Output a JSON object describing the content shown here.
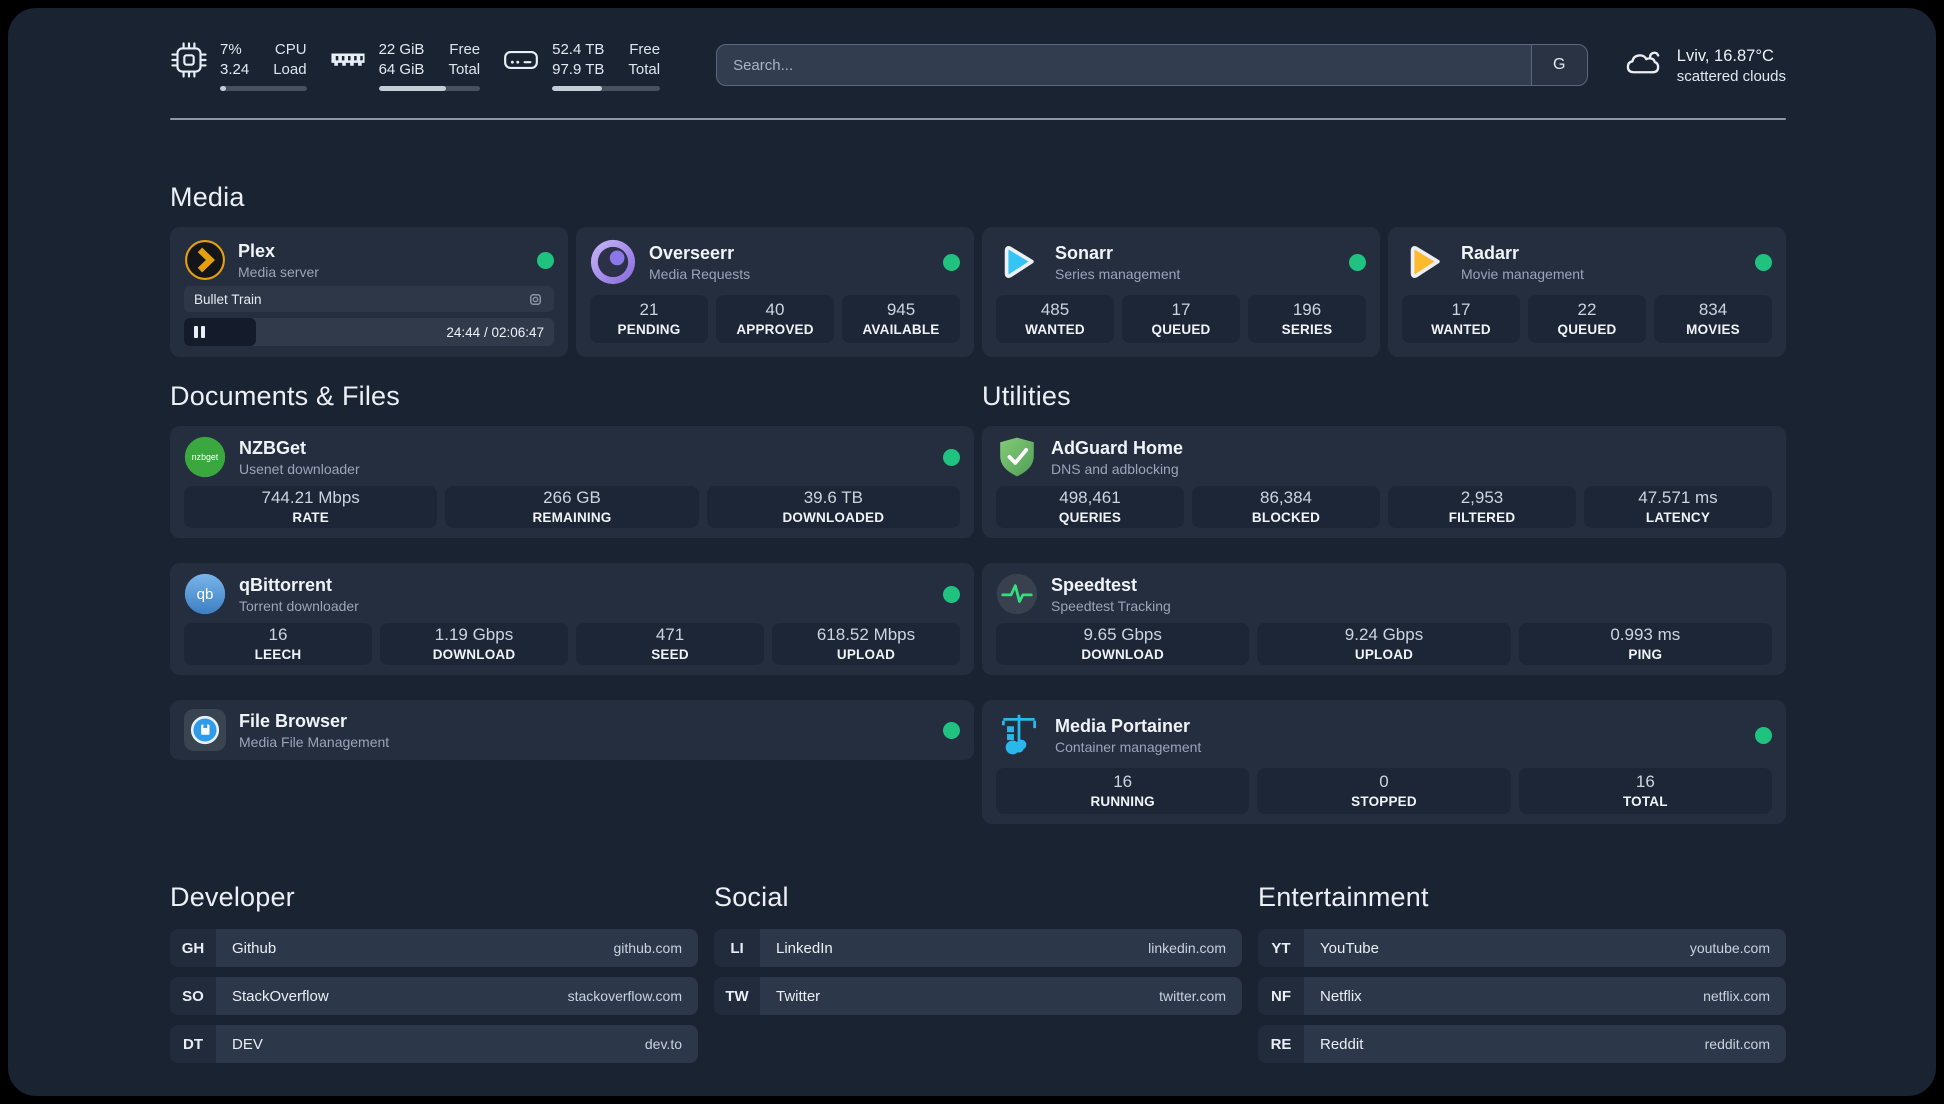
{
  "topbar": {
    "cpu": {
      "icon": "cpu-icon",
      "value_top": "7%",
      "value_bottom": "3.24",
      "label_top": "CPU",
      "label_bottom": "Load",
      "progress_pct": 7
    },
    "memory": {
      "icon": "ram-icon",
      "value_top": "22 GiB",
      "value_bottom": "64 GiB",
      "label_top": "Free",
      "label_bottom": "Total",
      "progress_pct": 66
    },
    "disk": {
      "icon": "disk-icon",
      "value_top": "52.4 TB",
      "value_bottom": "97.9 TB",
      "label_top": "Free",
      "label_bottom": "Total",
      "progress_pct": 46
    },
    "search": {
      "placeholder": "Search...",
      "engine_button_label": "G"
    },
    "weather": {
      "icon": "cloud-icon",
      "location_temp": "Lviv, 16.87°C",
      "condition": "scattered clouds"
    }
  },
  "sections": {
    "media": {
      "header": "Media",
      "plex": {
        "icon": "plex-logo",
        "title": "Plex",
        "subtitle": "Media server",
        "status": "online",
        "now_playing": "Bullet Train",
        "time": "24:44 / 02:06:47",
        "progress_pct": 19.5
      },
      "overseerr": {
        "icon": "overseerr-logo",
        "title": "Overseerr",
        "subtitle": "Media Requests",
        "status": "online",
        "stats": [
          {
            "value": "21",
            "label": "PENDING"
          },
          {
            "value": "40",
            "label": "APPROVED"
          },
          {
            "value": "945",
            "label": "AVAILABLE"
          }
        ]
      },
      "sonarr": {
        "icon": "sonarr-logo",
        "title": "Sonarr",
        "subtitle": "Series management",
        "status": "online",
        "stats": [
          {
            "value": "485",
            "label": "WANTED"
          },
          {
            "value": "17",
            "label": "QUEUED"
          },
          {
            "value": "196",
            "label": "SERIES"
          }
        ]
      },
      "radarr": {
        "icon": "radarr-logo",
        "title": "Radarr",
        "subtitle": "Movie management",
        "status": "online",
        "stats": [
          {
            "value": "17",
            "label": "WANTED"
          },
          {
            "value": "22",
            "label": "QUEUED"
          },
          {
            "value": "834",
            "label": "MOVIES"
          }
        ]
      }
    },
    "documents": {
      "header": "Documents & Files",
      "nzbget": {
        "icon": "nzbget-logo",
        "title": "NZBGet",
        "subtitle": "Usenet downloader",
        "status": "online",
        "stats": [
          {
            "value": "744.21 Mbps",
            "label": "RATE"
          },
          {
            "value": "266 GB",
            "label": "REMAINING"
          },
          {
            "value": "39.6 TB",
            "label": "DOWNLOADED"
          }
        ]
      },
      "qbittorrent": {
        "icon": "qbittorrent-logo",
        "title": "qBittorrent",
        "subtitle": "Torrent downloader",
        "status": "online",
        "stats": [
          {
            "value": "16",
            "label": "LEECH"
          },
          {
            "value": "1.19 Gbps",
            "label": "DOWNLOAD"
          },
          {
            "value": "471",
            "label": "SEED"
          },
          {
            "value": "618.52 Mbps",
            "label": "UPLOAD"
          }
        ]
      },
      "filebrowser": {
        "icon": "filebrowser-logo",
        "title": "File Browser",
        "subtitle": "Media File Management",
        "status": "online"
      }
    },
    "utilities": {
      "header": "Utilities",
      "adguard": {
        "icon": "adguard-logo",
        "title": "AdGuard Home",
        "subtitle": "DNS and adblocking",
        "stats": [
          {
            "value": "498,461",
            "label": "QUERIES"
          },
          {
            "value": "86,384",
            "label": "BLOCKED"
          },
          {
            "value": "2,953",
            "label": "FILTERED"
          },
          {
            "value": "47.571 ms",
            "label": "LATENCY"
          }
        ]
      },
      "speedtest": {
        "icon": "speedtest-logo",
        "title": "Speedtest",
        "subtitle": "Speedtest Tracking",
        "stats": [
          {
            "value": "9.65 Gbps",
            "label": "DOWNLOAD"
          },
          {
            "value": "9.24 Gbps",
            "label": "UPLOAD"
          },
          {
            "value": "0.993 ms",
            "label": "PING"
          }
        ]
      },
      "portainer": {
        "icon": "portainer-logo",
        "title": "Media Portainer",
        "subtitle": "Container management",
        "status": "online",
        "stats": [
          {
            "value": "16",
            "label": "RUNNING"
          },
          {
            "value": "0",
            "label": "STOPPED"
          },
          {
            "value": "16",
            "label": "TOTAL"
          }
        ]
      }
    },
    "bookmarks": [
      {
        "header": "Developer",
        "items": [
          {
            "abbr": "GH",
            "name": "Github",
            "url": "github.com"
          },
          {
            "abbr": "SO",
            "name": "StackOverflow",
            "url": "stackoverflow.com"
          },
          {
            "abbr": "DT",
            "name": "DEV",
            "url": "dev.to"
          }
        ]
      },
      {
        "header": "Social",
        "items": [
          {
            "abbr": "LI",
            "name": "LinkedIn",
            "url": "linkedin.com"
          },
          {
            "abbr": "TW",
            "name": "Twitter",
            "url": "twitter.com"
          }
        ]
      },
      {
        "header": "Entertainment",
        "items": [
          {
            "abbr": "YT",
            "name": "YouTube",
            "url": "youtube.com"
          },
          {
            "abbr": "NF",
            "name": "Netflix",
            "url": "netflix.com"
          },
          {
            "abbr": "RE",
            "name": "Reddit",
            "url": "reddit.com"
          }
        ]
      }
    ]
  },
  "colors": {
    "status_online": "#1fc37f",
    "plex_amber": "#e5a00d",
    "sonarr_cyan": "#35c5f4",
    "radarr_amber": "#ffb92e",
    "nzbget_green": "#3aa83e",
    "qbittorrent_blue": "#4a8fd4",
    "adguard_green": "#68bc71",
    "speedtest_green": "#35e07c",
    "portainer_blue": "#29b8eb",
    "filebrowser_blue": "#2f9ceb"
  }
}
